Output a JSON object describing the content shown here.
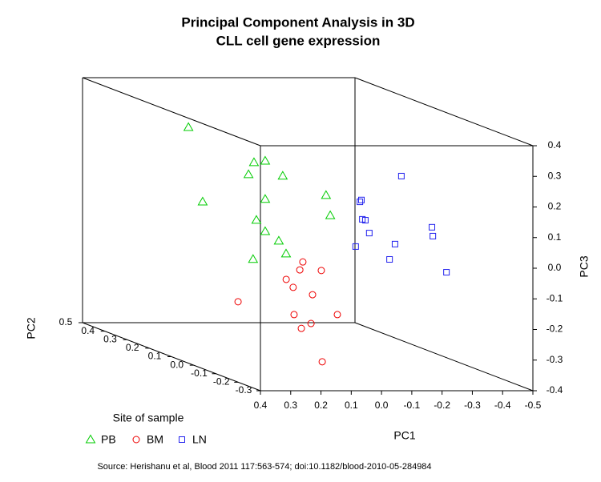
{
  "chart_data": {
    "type": "scatter3d",
    "title": "Principal Component Analysis in 3D",
    "subtitle": "CLL cell gene expression",
    "xlabel": "PC1",
    "ylabel": "PC2",
    "zlabel": "PC3",
    "xlim": [
      0.4,
      -0.5
    ],
    "xticks": [
      0.4,
      0.3,
      0.2,
      0.1,
      {
        "value": 0,
        "label": "0.0"
      },
      -0.1,
      -0.2,
      -0.3,
      -0.4,
      -0.5
    ],
    "ylim": [
      -0.3,
      0.5
    ],
    "yticks": [
      -0.3,
      -0.2,
      -0.1,
      {
        "value": 0,
        "label": "0.0"
      },
      0.1,
      0.2,
      0.3,
      0.4,
      0.5
    ],
    "zlim": [
      -0.4,
      0.4
    ],
    "zticks": [
      -0.4,
      -0.3,
      -0.2,
      -0.1,
      {
        "value": 0,
        "label": "0.0"
      },
      0.1,
      0.2,
      0.3,
      0.4
    ],
    "legend_title": "Site of sample",
    "series": [
      {
        "name": "PB",
        "color": "#00cc00",
        "marker": "triangle",
        "x": [
          0.344,
          0.201,
          0.164,
          0.219,
          0.106,
          0.297,
          0.164,
          -0.037,
          0.193,
          -0.051,
          0.164,
          0.119,
          0.095,
          0.204
        ],
        "y": [
          0.1,
          0,
          0,
          0,
          0,
          0.1,
          0,
          0,
          0,
          0,
          0,
          0,
          0,
          0
        ],
        "z": [
          0.349,
          0.262,
          0.267,
          0.223,
          0.218,
          0.106,
          0.142,
          0.155,
          0.074,
          0.089,
          0.037,
          0.006,
          -0.036,
          -0.054
        ]
      },
      {
        "name": "BM",
        "color": "#ee0000",
        "marker": "circle",
        "x": [
          0.113,
          0.123,
          0.052,
          0.168,
          0.145,
          0.081,
          0.327,
          0.142,
          -0.001,
          0.086,
          0.118,
          0.049
        ],
        "y": [
          -0.1,
          -0.1,
          -0.1,
          -0.1,
          -0.1,
          -0.1,
          -0.1,
          -0.1,
          -0.1,
          -0.1,
          -0.1,
          -0.1
        ],
        "z": [
          -0.035,
          -0.061,
          -0.063,
          -0.092,
          -0.118,
          -0.142,
          -0.165,
          -0.207,
          -0.207,
          -0.236,
          -0.252,
          -0.361
        ]
      },
      {
        "name": "LN",
        "color": "#2222ee",
        "marker": "square",
        "x": [
          -0.139,
          -0.002,
          -0.007,
          -0.01,
          -0.02,
          -0.033,
          -0.24,
          -0.243,
          -0.118,
          0.012,
          -0.1,
          -0.288
        ],
        "y": [
          -0.2,
          -0.2,
          -0.2,
          -0.2,
          -0.2,
          -0.2,
          -0.2,
          -0.2,
          -0.2,
          -0.2,
          -0.2,
          -0.2
        ],
        "z": [
          0.273,
          0.189,
          0.195,
          0.132,
          0.129,
          0.087,
          0.106,
          0.077,
          0.051,
          0.043,
          0.001,
          -0.041
        ]
      }
    ],
    "source": "Source: Herishanu et al, Blood 2011 117:563-574; doi:10.1182/blood-2010-05-284984"
  }
}
